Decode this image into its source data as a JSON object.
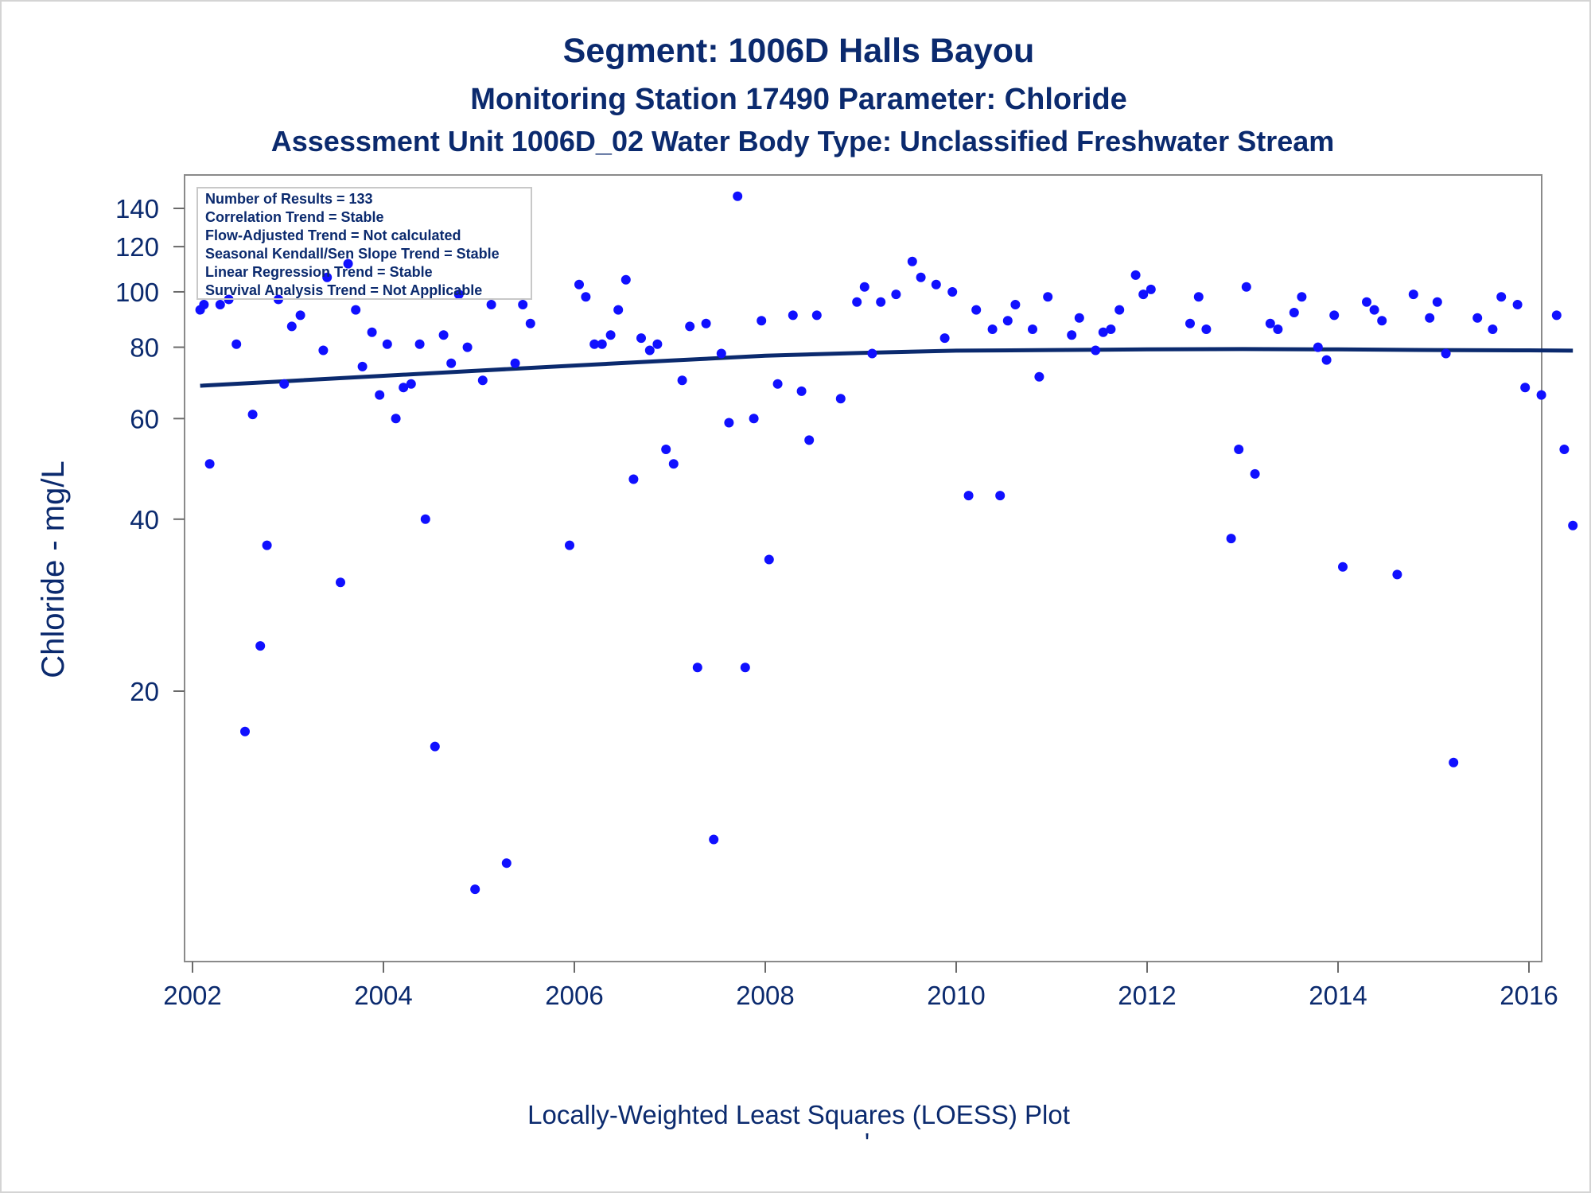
{
  "chart_data": {
    "type": "scatter",
    "title": "Segment: 1006D  Halls Bayou",
    "subtitle": "Monitoring Station 17490 Parameter: Chloride",
    "subtitle2": "Assessment Unit 1006D_02   Water Body Type: Unclassified Freshwater Stream",
    "xlabel": "",
    "ylabel": "Chloride - mg/L",
    "footnote": "Locally-Weighted Least Squares (LOESS) Plot",
    "footnote_mark": "'",
    "xlim": [
      2002,
      2016
    ],
    "ylim": [
      9,
      150
    ],
    "yscale": "log",
    "x_ticks": [
      "2002",
      "2004",
      "2006",
      "2008",
      "2010",
      "2012",
      "2014",
      "2016"
    ],
    "y_ticks": [
      "20",
      "40",
      "60",
      "80",
      "100",
      "120",
      "140"
    ],
    "grid": false,
    "legend": "none",
    "stats_box": [
      "Number of Results = 133",
      "Correlation Trend = Stable",
      "Flow-Adjusted Trend = Not calculated",
      "Seasonal Kendall/Sen Slope Trend = Stable",
      "Linear Regression Trend = Stable",
      "Survival Analysis Trend = Not Applicable"
    ],
    "series": [
      {
        "type": "scatter",
        "color": "#1010ff",
        "points": [
          [
            2002.08,
            93
          ],
          [
            2002.12,
            95
          ],
          [
            2002.18,
            50
          ],
          [
            2002.29,
            95
          ],
          [
            2002.38,
            97
          ],
          [
            2002.46,
            81
          ],
          [
            2002.55,
            17
          ],
          [
            2002.63,
            61
          ],
          [
            2002.71,
            24
          ],
          [
            2002.78,
            36
          ],
          [
            2002.9,
            97
          ],
          [
            2002.96,
            69
          ],
          [
            2003.04,
            87
          ],
          [
            2003.13,
            91
          ],
          [
            2003.37,
            79
          ],
          [
            2003.41,
            106
          ],
          [
            2003.55,
            31
          ],
          [
            2003.63,
            112
          ],
          [
            2003.71,
            93
          ],
          [
            2003.78,
            74
          ],
          [
            2003.88,
            85
          ],
          [
            2003.96,
            66
          ],
          [
            2004.04,
            81
          ],
          [
            2004.13,
            60
          ],
          [
            2004.21,
            68
          ],
          [
            2004.29,
            69
          ],
          [
            2004.38,
            81
          ],
          [
            2004.44,
            40
          ],
          [
            2004.54,
            16
          ],
          [
            2004.63,
            84
          ],
          [
            2004.71,
            75
          ],
          [
            2004.79,
            99
          ],
          [
            2004.88,
            80
          ],
          [
            2004.96,
            9
          ],
          [
            2005.04,
            70
          ],
          [
            2005.13,
            95
          ],
          [
            2005.29,
            10
          ],
          [
            2005.38,
            75
          ],
          [
            2005.46,
            95
          ],
          [
            2005.54,
            88
          ],
          [
            2005.95,
            36
          ],
          [
            2006.05,
            103
          ],
          [
            2006.12,
            98
          ],
          [
            2006.21,
            81
          ],
          [
            2006.29,
            81
          ],
          [
            2006.38,
            84
          ],
          [
            2006.46,
            93
          ],
          [
            2006.54,
            105
          ],
          [
            2006.62,
            47
          ],
          [
            2006.7,
            83
          ],
          [
            2006.79,
            79
          ],
          [
            2006.87,
            81
          ],
          [
            2006.96,
            53
          ],
          [
            2007.04,
            50
          ],
          [
            2007.13,
            70
          ],
          [
            2007.21,
            87
          ],
          [
            2007.29,
            22
          ],
          [
            2007.38,
            88
          ],
          [
            2007.46,
            11
          ],
          [
            2007.54,
            78
          ],
          [
            2007.62,
            59
          ],
          [
            2007.71,
            147
          ],
          [
            2007.79,
            22
          ],
          [
            2007.88,
            60
          ],
          [
            2007.96,
            89
          ],
          [
            2008.04,
            34
          ],
          [
            2008.13,
            69
          ],
          [
            2008.29,
            91
          ],
          [
            2008.38,
            67
          ],
          [
            2008.46,
            55
          ],
          [
            2008.54,
            91
          ],
          [
            2008.79,
            65
          ],
          [
            2008.96,
            96
          ],
          [
            2009.04,
            102
          ],
          [
            2009.12,
            78
          ],
          [
            2009.21,
            96
          ],
          [
            2009.37,
            99
          ],
          [
            2009.54,
            113
          ],
          [
            2009.63,
            106
          ],
          [
            2009.79,
            103
          ],
          [
            2009.88,
            83
          ],
          [
            2009.96,
            100
          ],
          [
            2010.13,
            44
          ],
          [
            2010.21,
            93
          ],
          [
            2010.38,
            86
          ],
          [
            2010.46,
            44
          ],
          [
            2010.54,
            89
          ],
          [
            2010.62,
            95
          ],
          [
            2010.8,
            86
          ],
          [
            2010.87,
            71
          ],
          [
            2010.96,
            98
          ],
          [
            2011.21,
            84
          ],
          [
            2011.29,
            90
          ],
          [
            2011.46,
            79
          ],
          [
            2011.54,
            85
          ],
          [
            2011.62,
            86
          ],
          [
            2011.71,
            93
          ],
          [
            2011.88,
            107
          ],
          [
            2011.96,
            99
          ],
          [
            2012.04,
            101
          ],
          [
            2012.45,
            88
          ],
          [
            2012.54,
            98
          ],
          [
            2012.62,
            86
          ],
          [
            2012.88,
            37
          ],
          [
            2012.96,
            53
          ],
          [
            2013.04,
            102
          ],
          [
            2013.13,
            48
          ],
          [
            2013.29,
            88
          ],
          [
            2013.37,
            86
          ],
          [
            2013.54,
            92
          ],
          [
            2013.62,
            98
          ],
          [
            2013.79,
            80
          ],
          [
            2013.88,
            76
          ],
          [
            2013.96,
            91
          ],
          [
            2014.05,
            33
          ],
          [
            2014.3,
            96
          ],
          [
            2014.38,
            93
          ],
          [
            2014.46,
            89
          ],
          [
            2014.62,
            32
          ],
          [
            2014.79,
            99
          ],
          [
            2014.96,
            90
          ],
          [
            2015.04,
            96
          ],
          [
            2015.13,
            78
          ],
          [
            2015.21,
            15
          ],
          [
            2015.46,
            90
          ],
          [
            2015.62,
            86
          ],
          [
            2015.71,
            98
          ],
          [
            2015.88,
            95
          ],
          [
            2015.96,
            68
          ],
          [
            2016.13,
            66
          ],
          [
            2016.29,
            91
          ],
          [
            2016.37,
            53
          ],
          [
            2016.46,
            39
          ]
        ]
      },
      {
        "type": "line",
        "color": "#0b2a6e",
        "points": [
          [
            2002.08,
            68.5
          ],
          [
            2003.0,
            69.8
          ],
          [
            2004.0,
            71.3
          ],
          [
            2005.0,
            72.8
          ],
          [
            2006.0,
            74.3
          ],
          [
            2007.0,
            75.8
          ],
          [
            2008.0,
            77.3
          ],
          [
            2009.0,
            78.2
          ],
          [
            2010.0,
            78.9
          ],
          [
            2011.0,
            79.1
          ],
          [
            2012.0,
            79.3
          ],
          [
            2013.0,
            79.4
          ],
          [
            2014.0,
            79.3
          ],
          [
            2015.0,
            79.1
          ],
          [
            2016.0,
            79.0
          ],
          [
            2016.46,
            78.9
          ]
        ]
      }
    ]
  }
}
